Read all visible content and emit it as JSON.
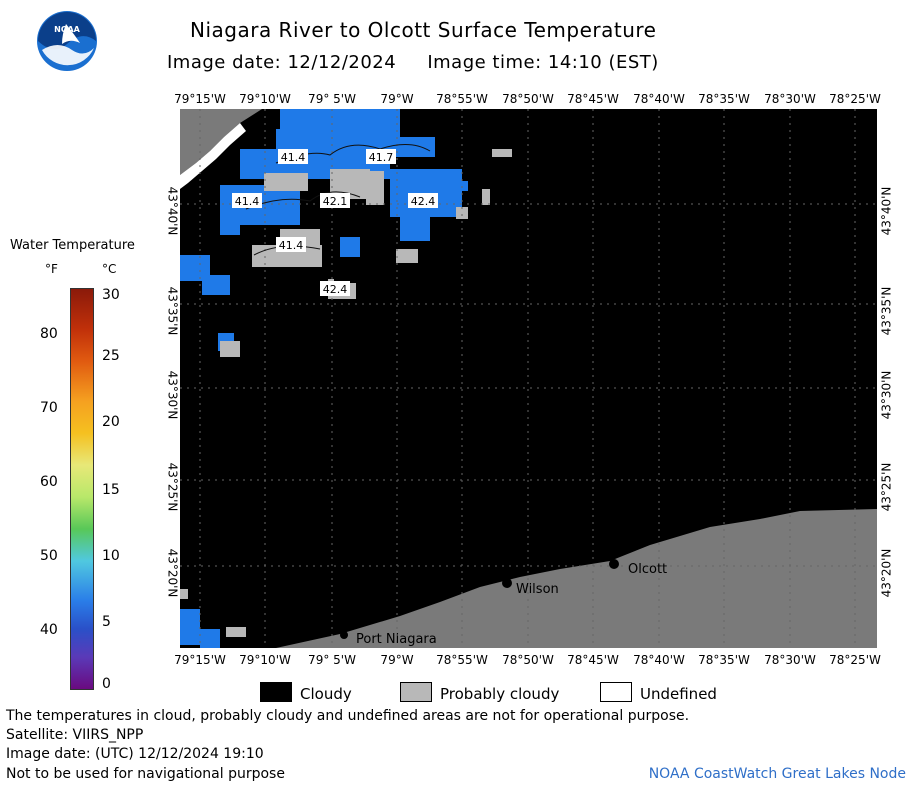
{
  "title": "Niagara River to Olcott Surface Temperature",
  "subtitle": {
    "image_date": "Image date: 12/12/2024",
    "image_time": "Image time: 14:10 (EST)"
  },
  "lon_labels": [
    "79°15'W",
    "79°10'W",
    "79° 5'W",
    "79°W",
    "78°55'W",
    "78°50'W",
    "78°45'W",
    "78°40'W",
    "78°35'W",
    "78°30'W",
    "78°25'W"
  ],
  "lat_labels": [
    "43°40'N",
    "43°35'N",
    "43°30'N",
    "43°25'N",
    "43°20'N"
  ],
  "legend": {
    "title": "Water Temperature",
    "unit_f": "°F",
    "unit_c": "°C",
    "f_ticks": [
      "80",
      "70",
      "60",
      "50",
      "40"
    ],
    "c_ticks": [
      "30",
      "25",
      "20",
      "15",
      "10",
      "5",
      "0"
    ],
    "colors": {
      "warm": "#8b1a0a",
      "hot": "#e05a10",
      "mid_warm": "#f5c020",
      "mid": "#d8f07a",
      "green": "#58c858",
      "cyan": "#50c8e0",
      "blue": "#2a7de8",
      "cold": "#5a3ab8",
      "coldest": "#6a0a80"
    }
  },
  "places": {
    "olcott": "Olcott",
    "wilson": "Wilson",
    "port_niagara": "Port Niagara"
  },
  "temperature_labels": [
    "41.4",
    "41.7",
    "41.4",
    "42.1",
    "42.4",
    "41.4",
    "42.4"
  ],
  "key": {
    "cloudy": "Cloudy",
    "probably_cloudy": "Probably cloudy",
    "undefined": "Undefined"
  },
  "notes": {
    "disclaimer": "The temperatures in cloud, probably cloudy and undefined areas are not for operational purpose.",
    "satellite": "Satellite: VIIRS_NPP",
    "utc_date": "Image date: (UTC) 12/12/2024  19:10",
    "nav": "Not to be used for navigational purpose"
  },
  "credit": "NOAA CoastWatch Great Lakes Node",
  "logo_text": "NOAA",
  "map_colors": {
    "cloud": "#000000",
    "probably_cloudy": "#b8b8b8",
    "land": "#7a7a7a",
    "water_temp": "#1f7ae8"
  }
}
